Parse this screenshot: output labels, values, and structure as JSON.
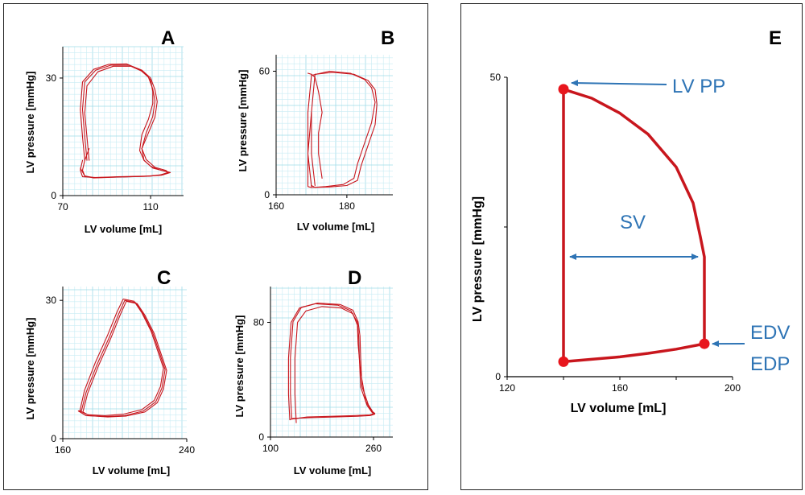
{
  "chart_data": [
    {
      "panel": "A",
      "type": "line",
      "xlabel": "LV volume [mL]",
      "ylabel": "LV pressure [mmHg]",
      "xlim": [
        70,
        125
      ],
      "ylim": [
        0,
        38
      ],
      "xticks": [
        70,
        110
      ],
      "yticks": [
        0,
        30
      ],
      "grid": true,
      "series": [
        {
          "loop": 1,
          "x": [
            81,
            80,
            79,
            80,
            85,
            92,
            100,
            106,
            110,
            112,
            113,
            112,
            109,
            106,
            107,
            110,
            114,
            118,
            116,
            110,
            95,
            85,
            79,
            78,
            79
          ],
          "y": [
            9,
            15,
            22,
            29,
            32,
            33.3,
            33.3,
            32,
            30,
            27,
            24,
            20,
            16,
            12,
            9,
            7.5,
            6.6,
            6,
            5.4,
            5,
            4.8,
            4.6,
            4.8,
            6.5,
            9
          ]
        },
        {
          "loop": 2,
          "x": [
            82,
            81,
            80,
            81,
            86,
            93,
            101,
            107,
            110,
            111,
            111,
            109,
            106,
            105,
            107,
            111,
            116,
            119,
            115,
            108,
            94,
            84,
            80,
            79,
            80,
            82
          ],
          "y": [
            9,
            15,
            21,
            28,
            31.6,
            33,
            33,
            31.5,
            29.5,
            26.5,
            23.5,
            19.5,
            15.5,
            11.5,
            9,
            7,
            6.3,
            5.9,
            5.2,
            4.9,
            4.7,
            4.5,
            5,
            6.5,
            9,
            12
          ]
        },
        {
          "loop": 3,
          "x": [
            80,
            79,
            78,
            79,
            84,
            91,
            99,
            105,
            109,
            111,
            112,
            111,
            108,
            106,
            108,
            112,
            117,
            118,
            114,
            107,
            93,
            84,
            80,
            78
          ],
          "y": [
            9,
            15,
            22,
            29,
            32.2,
            33.5,
            33.6,
            32.2,
            30.2,
            27.2,
            24.2,
            20.2,
            16,
            12,
            9.2,
            7.2,
            6.4,
            5.9,
            5.2,
            4.9,
            4.7,
            4.6,
            5,
            7
          ]
        }
      ]
    },
    {
      "panel": "B",
      "type": "line",
      "xlabel": "LV volume [mL]",
      "ylabel": "LV pressure [mmHg]",
      "xlim": [
        160,
        193
      ],
      "ylim": [
        0,
        68
      ],
      "xticks": [
        160,
        180
      ],
      "yticks": [
        0,
        60
      ],
      "grid": true,
      "series": [
        {
          "loop": 1,
          "x": [
            170,
            169,
            169,
            170,
            175,
            181,
            185,
            187,
            188,
            187,
            185,
            183,
            182,
            179,
            174,
            170,
            169,
            169,
            170
          ],
          "y": [
            4,
            20,
            40,
            58,
            60,
            59,
            56,
            52,
            45,
            35,
            25,
            15,
            8,
            5,
            4,
            3.5,
            4,
            20,
            40
          ]
        },
        {
          "loop": 2,
          "x": [
            171,
            170,
            170,
            171,
            176,
            182,
            186,
            188,
            188.5,
            188,
            186,
            184,
            183,
            180,
            175,
            171,
            170
          ],
          "y": [
            4.5,
            20,
            40,
            58.5,
            59.5,
            58.5,
            55.5,
            51,
            44,
            34,
            24,
            14,
            7,
            4.5,
            3.8,
            3.6,
            4.5
          ]
        },
        {
          "loop": 3,
          "x": [
            173,
            172,
            172,
            173,
            172,
            171,
            170,
            169
          ],
          "y": [
            8,
            20,
            30,
            40,
            50,
            57,
            58.5,
            59
          ]
        }
      ]
    },
    {
      "panel": "C",
      "type": "line",
      "xlabel": "LV volume [mL]",
      "ylabel": "LV pressure [mmHg]",
      "xlim": [
        160,
        240
      ],
      "ylim": [
        0,
        33
      ],
      "xticks": [
        160,
        240
      ],
      "yticks": [
        0,
        30
      ],
      "grid": true,
      "series": [
        {
          "loop": 1,
          "x": [
            172,
            175,
            182,
            190,
            196,
            200,
            207,
            212,
            218,
            222,
            226,
            224,
            220,
            212,
            200,
            188,
            175,
            170,
            172
          ],
          "y": [
            6,
            10,
            16,
            22,
            27,
            30,
            29.5,
            27,
            23,
            19,
            15,
            11,
            8,
            6,
            5,
            4.8,
            5,
            6,
            6
          ]
        },
        {
          "loop": 2,
          "x": [
            171,
            174,
            181,
            189,
            195,
            199,
            206,
            211,
            217,
            221,
            225,
            223,
            219,
            211,
            199,
            187,
            176,
            171
          ],
          "y": [
            6,
            10.5,
            16.5,
            22.5,
            27.5,
            30.3,
            29.8,
            27.3,
            23.3,
            19.3,
            15.3,
            11.3,
            8.3,
            6.3,
            5.3,
            5,
            5.2,
            6
          ]
        },
        {
          "loop": 3,
          "x": [
            173,
            176,
            183,
            191,
            197,
            201,
            208,
            213,
            219,
            223,
            227,
            225,
            221,
            213,
            201,
            189,
            177,
            173
          ],
          "y": [
            5.8,
            9.8,
            15.8,
            21.8,
            26.8,
            29.8,
            29.3,
            26.8,
            22.8,
            18.8,
            14.8,
            10.8,
            7.8,
            5.8,
            4.9,
            4.7,
            5,
            5.8
          ]
        }
      ]
    },
    {
      "panel": "D",
      "type": "line",
      "xlabel": "LV volume [mL]",
      "ylabel": "LV pressure [mmHg]",
      "xlim": [
        100,
        290
      ],
      "ylim": [
        0,
        105
      ],
      "xticks": [
        100,
        260
      ],
      "yticks": [
        0,
        80
      ],
      "grid": true,
      "series": [
        {
          "loop": 1,
          "x": [
            130,
            128,
            128,
            132,
            145,
            170,
            205,
            225,
            235,
            237,
            238,
            240,
            250,
            258,
            262,
            255,
            235,
            200,
            160,
            135,
            130
          ],
          "y": [
            12,
            30,
            55,
            80,
            90,
            93,
            92,
            88,
            80,
            70,
            55,
            35,
            22,
            17,
            16,
            15,
            14.5,
            14,
            13.5,
            13,
            12
          ]
        },
        {
          "loop": 2,
          "x": [
            133,
            131,
            131,
            135,
            148,
            173,
            208,
            228,
            236,
            239,
            240,
            242,
            252,
            259,
            262,
            254,
            232,
            197,
            157,
            133
          ],
          "y": [
            12.5,
            30.5,
            55.5,
            80.5,
            90.5,
            93.5,
            92.5,
            88.5,
            80.5,
            70.5,
            55.5,
            35.5,
            22.5,
            17.5,
            16.5,
            15.5,
            15,
            14.5,
            14,
            12.5
          ]
        },
        {
          "loop": 3,
          "x": [
            140,
            138,
            138,
            142,
            155,
            180,
            210,
            228,
            235,
            236,
            240,
            248,
            257,
            260
          ],
          "y": [
            10,
            30,
            55,
            80,
            88,
            91,
            90,
            86,
            78,
            65,
            45,
            25,
            18,
            16
          ]
        }
      ]
    },
    {
      "panel": "E",
      "type": "line",
      "xlabel": "LV volume [mL]",
      "ylabel": "LV pressure [mmHg]",
      "xlim": [
        120,
        200
      ],
      "ylim": [
        0,
        50
      ],
      "xticks": [
        120,
        160,
        200
      ],
      "yticks": [
        0,
        50
      ],
      "grid": false,
      "series": [
        {
          "x": [
            140,
            140,
            150,
            160,
            170,
            180,
            186,
            188.5,
            190,
            190,
            180,
            170,
            160,
            150,
            140
          ],
          "y": [
            2.5,
            48,
            46.5,
            44,
            40.5,
            35,
            29,
            23.5,
            20,
            5.5,
            4.6,
            3.9,
            3.3,
            2.9,
            2.5
          ]
        }
      ],
      "points": [
        {
          "x": 140,
          "y": 48
        },
        {
          "x": 190,
          "y": 5.5
        },
        {
          "x": 140,
          "y": 2.5
        }
      ],
      "annotations": [
        {
          "text": "LV PP"
        },
        {
          "text": "SV"
        },
        {
          "text": "EDV"
        },
        {
          "text": "EDP"
        }
      ]
    }
  ],
  "panel_labels": [
    "A",
    "B",
    "C",
    "D",
    "E"
  ],
  "colors": {
    "loop": "#c8161d",
    "annotation": "#2e74b5",
    "grid": "#9fdbe9"
  }
}
